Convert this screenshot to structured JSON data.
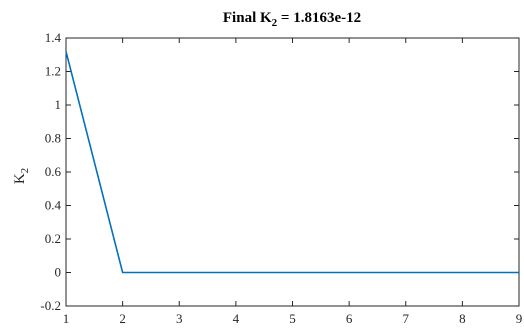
{
  "chart_data": {
    "type": "line",
    "title_prefix": "Final K",
    "title_sub": "2",
    "title_suffix": " = 1.8163e-12",
    "ylabel_main": "K",
    "ylabel_sub": "2",
    "xlabel": "",
    "xlim": [
      1,
      9
    ],
    "ylim": [
      -0.2,
      1.4
    ],
    "xticks": [
      1,
      2,
      3,
      4,
      5,
      6,
      7,
      8,
      9
    ],
    "yticks": [
      -0.2,
      0,
      0.2,
      0.4,
      0.6,
      0.8,
      1,
      1.2,
      1.4
    ],
    "ytick_labels": [
      "-0.2",
      "0",
      "0.2",
      "0.4",
      "0.6",
      "0.8",
      "1",
      "1.2",
      "1.4"
    ],
    "grid": false,
    "series": [
      {
        "color": "#0072BD",
        "x": [
          1,
          2,
          3,
          4,
          5,
          6,
          7,
          8,
          9
        ],
        "y": [
          1.32,
          0,
          0,
          0,
          0,
          0,
          0,
          0,
          0
        ]
      }
    ]
  }
}
